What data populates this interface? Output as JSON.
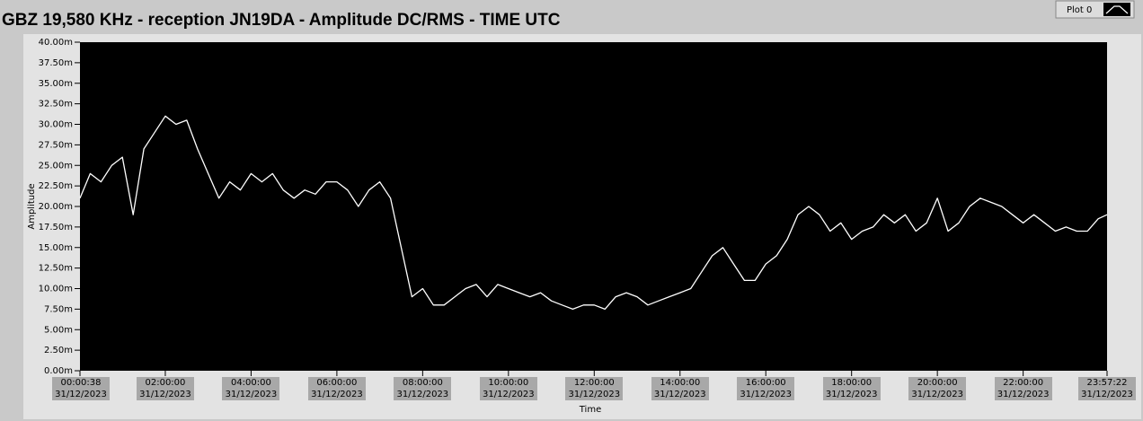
{
  "chart_data": {
    "type": "line",
    "title": "GBZ  19,580 KHz - reception JN19DA -  Amplitude DC/RMS   - TIME UTC",
    "x_label": "Time",
    "y_label": "Amplitude",
    "legend": "top-right",
    "x": [
      38,
      900,
      1800,
      2700,
      3600,
      4500,
      5400,
      6300,
      7200,
      8100,
      9000,
      9900,
      10800,
      11700,
      12600,
      13500,
      14400,
      15300,
      16200,
      17100,
      18000,
      18900,
      19800,
      20700,
      21600,
      22500,
      23400,
      24300,
      25200,
      26100,
      27000,
      27900,
      28800,
      29700,
      30600,
      31500,
      32400,
      33300,
      34200,
      35100,
      36000,
      36900,
      37800,
      38700,
      39600,
      40500,
      41400,
      42300,
      43200,
      44100,
      45000,
      45900,
      46800,
      47700,
      48600,
      49500,
      50400,
      51300,
      52200,
      53100,
      54000,
      54900,
      55800,
      56700,
      57600,
      58500,
      59400,
      60300,
      61200,
      62100,
      63000,
      63900,
      64800,
      65700,
      66600,
      67500,
      68400,
      69300,
      70200,
      71100,
      72000,
      72900,
      73800,
      74700,
      75600,
      76500,
      77400,
      78300,
      79200,
      80100,
      81000,
      81900,
      82800,
      83700,
      84600,
      85500,
      86242
    ],
    "series": [
      {
        "name": "Plot 0",
        "color": "#ffffff",
        "values": [
          21,
          24,
          23,
          25,
          26,
          19,
          27,
          29,
          31,
          30,
          30.5,
          27,
          24,
          21,
          23,
          22,
          24,
          23,
          24,
          22,
          21,
          22,
          21.5,
          23,
          23,
          22,
          20,
          22,
          23,
          21,
          15,
          9,
          10,
          8,
          8,
          9,
          10,
          10.5,
          9,
          10.5,
          10,
          9.5,
          9,
          9.5,
          8.5,
          8,
          7.5,
          8,
          8,
          7.5,
          9,
          9.5,
          9,
          8,
          8.5,
          9,
          9.5,
          10,
          12,
          14,
          15,
          13,
          11,
          11,
          13,
          14,
          16,
          19,
          20,
          19,
          17,
          18,
          16,
          17,
          17.5,
          19,
          18,
          19,
          17,
          18,
          21,
          17,
          18,
          20,
          21,
          20.5,
          20,
          19,
          18,
          19,
          18,
          17,
          17.5,
          17,
          17,
          18.5,
          19
        ]
      }
    ],
    "xlim": [
      38,
      86242
    ],
    "xticks": [
      {
        "value": 38,
        "label": "00:00:38\n31/12/2023"
      },
      {
        "value": 7200,
        "label": "02:00:00\n31/12/2023"
      },
      {
        "value": 14400,
        "label": "04:00:00\n31/12/2023"
      },
      {
        "value": 21600,
        "label": "06:00:00\n31/12/2023"
      },
      {
        "value": 28800,
        "label": "08:00:00\n31/12/2023"
      },
      {
        "value": 36000,
        "label": "10:00:00\n31/12/2023"
      },
      {
        "value": 43200,
        "label": "12:00:00\n31/12/2023"
      },
      {
        "value": 50400,
        "label": "14:00:00\n31/12/2023"
      },
      {
        "value": 57600,
        "label": "16:00:00\n31/12/2023"
      },
      {
        "value": 64800,
        "label": "18:00:00\n31/12/2023"
      },
      {
        "value": 72000,
        "label": "20:00:00\n31/12/2023"
      },
      {
        "value": 79200,
        "label": "22:00:00\n31/12/2023"
      },
      {
        "value": 86242,
        "label": "23:57:22\n31/12/2023"
      }
    ],
    "ylim": [
      0,
      40
    ],
    "yticks": [
      {
        "value": 0,
        "label": "0.00m"
      },
      {
        "value": 2.5,
        "label": "2.50m"
      },
      {
        "value": 5,
        "label": "5.00m"
      },
      {
        "value": 7.5,
        "label": "7.50m"
      },
      {
        "value": 10,
        "label": "10.00m"
      },
      {
        "value": 12.5,
        "label": "12.50m"
      },
      {
        "value": 15,
        "label": "15.00m"
      },
      {
        "value": 17.5,
        "label": "17.50m"
      },
      {
        "value": 20,
        "label": "20.00m"
      },
      {
        "value": 22.5,
        "label": "22.50m"
      },
      {
        "value": 25,
        "label": "25.00m"
      },
      {
        "value": 27.5,
        "label": "27.50m"
      },
      {
        "value": 30,
        "label": "30.00m"
      },
      {
        "value": 32.5,
        "label": "32.50m"
      },
      {
        "value": 35,
        "label": "35.00m"
      },
      {
        "value": 37.5,
        "label": "37.50m"
      },
      {
        "value": 40,
        "label": "40.00m"
      }
    ]
  }
}
